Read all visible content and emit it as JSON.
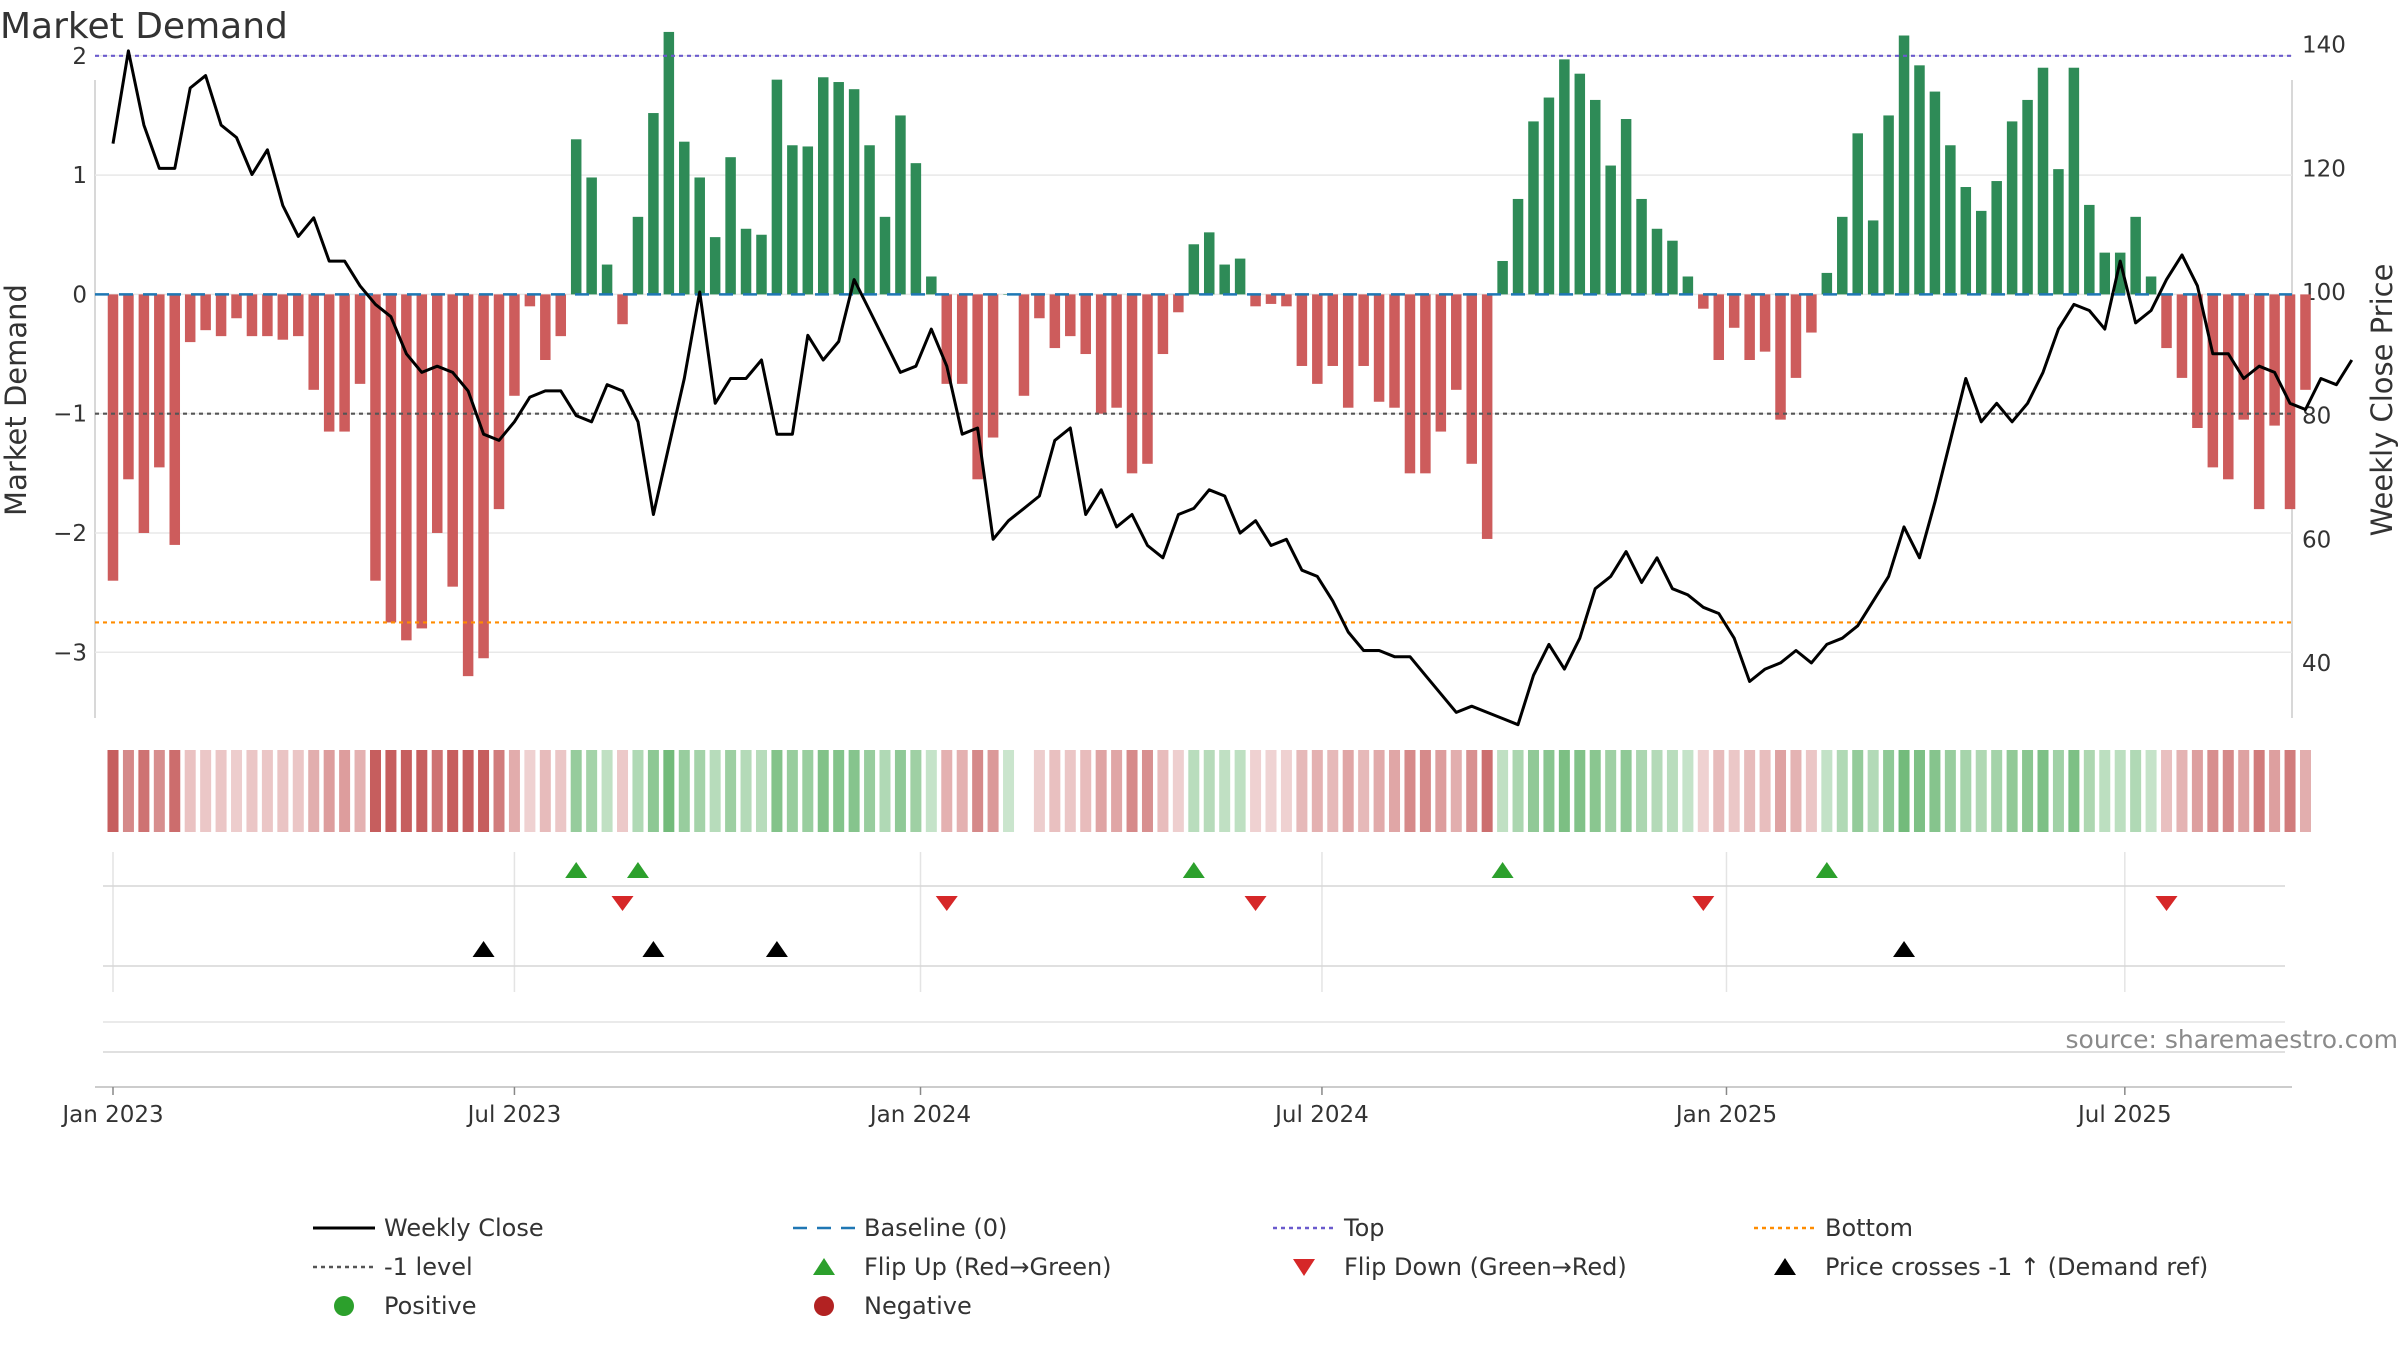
{
  "chart_data": {
    "type": "bar",
    "title": "Market Demand",
    "ylabel_left": "Market Demand",
    "ylabel_right": "Weekly Close Price",
    "ylim_left": [
      -3.4,
      2.3
    ],
    "ylim_right": [
      34,
      144
    ],
    "yticks_left": [
      2,
      1,
      0,
      -1,
      -2,
      -3
    ],
    "yticks_left_labels": [
      "2",
      "1",
      "0",
      "−1",
      "−2",
      "−3"
    ],
    "yticks_right": [
      140,
      120,
      100,
      80,
      60,
      40
    ],
    "yticks_right_labels": [
      "140",
      "120",
      "100",
      "80",
      "60",
      "40"
    ],
    "reference_lines": {
      "top": 2.0,
      "baseline": 0,
      "minus_one": -1.0,
      "bottom": -2.75
    },
    "x_start_week": "2022-12-30",
    "x_ticks": [
      {
        "label": "Jan 2023",
        "week": 0
      },
      {
        "label": "Jul 2023",
        "week": 26
      },
      {
        "label": "Jan 2024",
        "week": 52.3
      },
      {
        "label": "Jul 2024",
        "week": 78.3
      },
      {
        "label": "Jan 2025",
        "week": 104.5
      },
      {
        "label": "Jul 2025",
        "week": 130.3
      }
    ],
    "series": [
      {
        "name": "Market Demand",
        "type": "bar",
        "values": [
          -2.4,
          -1.55,
          -2.0,
          -1.45,
          -2.1,
          -0.4,
          -0.3,
          -0.35,
          -0.2,
          -0.35,
          -0.35,
          -0.38,
          -0.35,
          -0.8,
          -1.15,
          -1.15,
          -0.75,
          -2.4,
          -2.75,
          -2.9,
          -2.8,
          -2.0,
          -2.45,
          -3.2,
          -3.05,
          -1.8,
          -0.85,
          -0.1,
          -0.55,
          -0.35,
          1.3,
          0.98,
          0.25,
          -0.25,
          0.65,
          1.52,
          2.2,
          1.28,
          0.98,
          0.48,
          1.15,
          0.55,
          0.5,
          1.8,
          1.25,
          1.24,
          1.82,
          1.78,
          1.72,
          1.25,
          0.65,
          1.5,
          1.1,
          0.15,
          -0.75,
          -0.75,
          -1.55,
          -1.2,
          0,
          -0.85,
          -0.2,
          -0.45,
          -0.35,
          -0.5,
          -1.0,
          -0.95,
          -1.5,
          -1.42,
          -0.5,
          -0.15,
          0.42,
          0.52,
          0.25,
          0.3,
          -0.1,
          -0.08,
          -0.1,
          -0.6,
          -0.75,
          -0.6,
          -0.95,
          -0.6,
          -0.9,
          -0.95,
          -1.5,
          -1.5,
          -1.15,
          -0.8,
          -1.42,
          -2.05,
          0.28,
          0.8,
          1.45,
          1.65,
          1.97,
          1.85,
          1.63,
          1.08,
          1.47,
          0.8,
          0.55,
          0.45,
          0.15,
          -0.12,
          -0.55,
          -0.28,
          -0.55,
          -0.48,
          -1.05,
          -0.7,
          -0.32,
          0.18,
          0.65,
          1.35,
          0.62,
          1.5,
          2.17,
          1.92,
          1.7,
          1.25,
          0.9,
          0.7,
          0.95,
          1.45,
          1.63,
          1.9,
          1.05,
          1.9,
          0.75,
          0.35,
          0.35,
          0.65,
          0.15,
          -0.45,
          -0.7,
          -1.12,
          -1.45,
          -1.55,
          -1.05,
          -1.8,
          -1.1,
          -1.8,
          -0.8
        ],
        "color_positive": "#2e8b57",
        "color_negative": "#cd5c5c"
      },
      {
        "name": "Weekly Close",
        "type": "line",
        "axis": "right",
        "color": "#000000",
        "values": [
          124,
          139,
          127,
          120,
          120,
          133,
          135,
          127,
          125,
          119,
          123,
          114,
          109,
          112,
          105,
          105,
          101,
          98,
          96,
          90,
          87,
          88,
          87,
          84,
          77,
          76,
          79,
          83,
          84,
          84,
          80,
          79,
          85,
          84,
          79,
          64,
          75,
          86,
          100,
          82,
          86,
          86,
          89,
          77,
          77,
          93,
          89,
          92,
          102,
          97,
          92,
          87,
          88,
          94,
          88,
          77,
          78,
          60,
          63,
          65,
          67,
          76,
          78,
          64,
          68,
          62,
          64,
          59,
          57,
          64,
          65,
          68,
          67,
          61,
          63,
          59,
          60,
          55,
          54,
          50,
          45,
          42,
          42,
          41,
          41,
          38,
          35,
          32,
          33,
          32,
          31,
          30,
          38,
          43,
          39,
          44,
          52,
          54,
          58,
          53,
          57,
          52,
          51,
          49,
          48,
          44,
          37,
          39,
          40,
          42,
          40,
          43,
          44,
          46,
          50,
          54,
          62,
          57,
          66,
          76,
          86,
          79,
          82,
          79,
          82,
          87,
          94,
          98,
          97,
          94,
          105,
          95,
          97,
          102,
          106,
          101,
          90,
          90,
          86,
          88,
          87,
          82,
          81,
          86,
          85,
          89
        ],
        "label_in_legend": "Weekly Close"
      }
    ],
    "heat_strip": {
      "gap_week": 59,
      "description_note": "per-week demand tint row"
    },
    "markers": {
      "flip_up_weeks": [
        30,
        34,
        70,
        90,
        111
      ],
      "flip_down_weeks": [
        33,
        54,
        74,
        103,
        133
      ],
      "price_cross_weeks": [
        24,
        35,
        43,
        116
      ],
      "flip_up_color": "#2ca02c",
      "flip_down_color": "#d62728",
      "price_cross_color": "#000000"
    },
    "legend": [
      {
        "label": "Weekly Close",
        "kind": "line",
        "color": "#000000"
      },
      {
        "label": "Baseline (0)",
        "kind": "dash",
        "color": "#1f77b4"
      },
      {
        "label": "Top",
        "kind": "dot",
        "color": "#6a5acd"
      },
      {
        "label": "Bottom",
        "kind": "dot",
        "color": "#ff8c00"
      },
      {
        "label": "-1 level",
        "kind": "dot",
        "color": "#555555"
      },
      {
        "label": "Flip Up (Red→Green)",
        "kind": "tri-up",
        "color": "#2ca02c"
      },
      {
        "label": "Flip Down (Green→Red)",
        "kind": "tri-down",
        "color": "#d62728"
      },
      {
        "label": "Price crosses -1 ↑ (Demand ref)",
        "kind": "tri-up",
        "color": "#000000"
      },
      {
        "label": "Positive",
        "kind": "dot-circle",
        "color": "#2ca02c"
      },
      {
        "label": "Negative",
        "kind": "dot-circle",
        "color": "#b22222"
      }
    ],
    "source": "source: sharemaestro.com"
  }
}
